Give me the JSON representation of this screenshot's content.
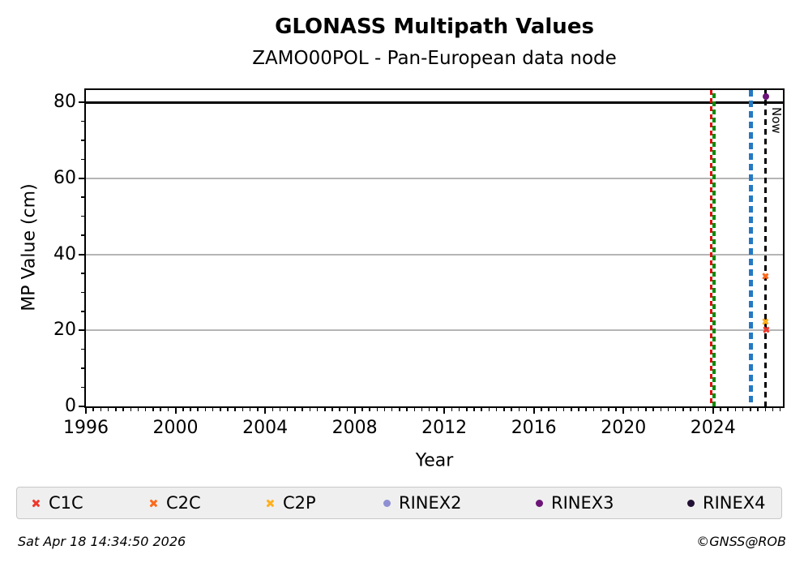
{
  "title": "GLONASS Multipath Values",
  "subtitle": "ZAMO00POL - Pan-European data node",
  "footer": {
    "timestamp": "Sat Apr 18 14:34:50 2026",
    "credit": "©GNSS@ROB"
  },
  "chart_data": {
    "type": "scatter",
    "title": "GLONASS Multipath Values",
    "subtitle": "ZAMO00POL - Pan-European data node",
    "xlabel": "Year",
    "ylabel": "MP Value (cm)",
    "xlim": [
      1996,
      2027.12
    ],
    "ylim": [
      0,
      83.2
    ],
    "xticks": [
      1996,
      2000,
      2004,
      2008,
      2012,
      2016,
      2020,
      2024
    ],
    "yticks": [
      0,
      20,
      40,
      60,
      80
    ],
    "x_minor_step": 0.33333,
    "y_minor_step": 5,
    "grid": "horizontal-majors",
    "grid_color": "#b5b5b5",
    "hlines": [
      {
        "name": "cutoff-80",
        "y": 80,
        "color": "#000000"
      }
    ],
    "vlines": [
      {
        "name": "event-red",
        "x": 2023.9,
        "color": "#e01010",
        "style": "dashed",
        "width": 3,
        "dash": 6,
        "gap": 4,
        "phase": 0
      },
      {
        "name": "event-green",
        "x": 2024.05,
        "color": "#0a8a0a",
        "style": "dashed",
        "width": 4,
        "dash": 6,
        "gap": 4,
        "phase": 4
      },
      {
        "name": "event-blue",
        "x": 2025.7,
        "color": "#2479c2",
        "style": "dashed",
        "width": 5,
        "dash": 8,
        "gap": 5,
        "phase": 0
      },
      {
        "name": "now-line",
        "x": 2026.35,
        "color": "#000000",
        "style": "dashed",
        "width": 2.5,
        "dash": 7,
        "gap": 5,
        "phase": 0,
        "label": "Now"
      }
    ],
    "now_label": "Now",
    "series": [
      {
        "name": "C1C",
        "color": "#f0382b",
        "marker": "x",
        "points": [
          {
            "x": 2026.36,
            "y": 20.1
          }
        ]
      },
      {
        "name": "C2C",
        "color": "#fb6a1c",
        "marker": "x",
        "points": [
          {
            "x": 2026.35,
            "y": 34.2
          }
        ]
      },
      {
        "name": "C2P",
        "color": "#ffb01e",
        "marker": "x",
        "points": [
          {
            "x": 2026.33,
            "y": 22.3
          }
        ]
      },
      {
        "name": "RINEX2",
        "color": "#8f8fd3",
        "marker": "circle",
        "points": []
      },
      {
        "name": "RINEX3",
        "color": "#6d1478",
        "marker": "circle",
        "points": [
          {
            "x": 2026.37,
            "y": 81.6
          }
        ]
      },
      {
        "name": "RINEX4",
        "color": "#221133",
        "marker": "circle",
        "points": []
      }
    ],
    "legend_position": "bottom"
  }
}
